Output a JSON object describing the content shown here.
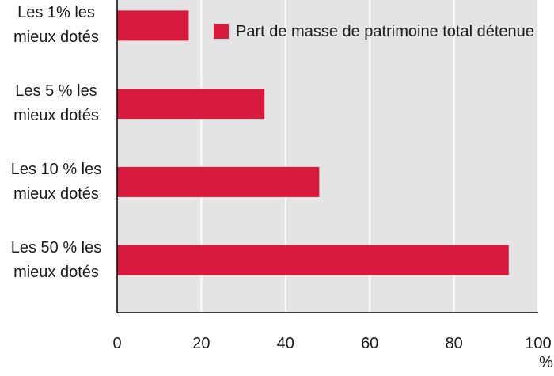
{
  "chart_data": {
    "type": "bar",
    "orientation": "horizontal",
    "categories": [
      "Les 1% les mieux dotés",
      "Les 5 % les mieux dotés",
      "Les 10 % les mieux dotés",
      "Les 50 % les mieux dotés"
    ],
    "series": [
      {
        "name": "Part de masse de patrimoine total détenue",
        "color": "#d71a3d",
        "values": [
          17,
          35,
          48,
          93
        ]
      }
    ],
    "xlim": [
      0,
      100
    ],
    "xticks": [
      0,
      20,
      40,
      60,
      80,
      100
    ],
    "x_unit": "%",
    "grid": true,
    "legend": "top-right"
  }
}
